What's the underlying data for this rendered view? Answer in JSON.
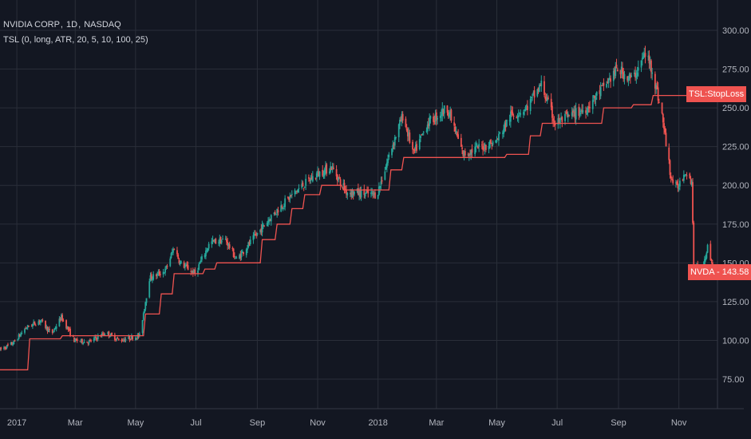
{
  "header": {
    "symbol": "NVIDIA CORP",
    "interval": "1D",
    "exchange": "NASDAQ",
    "indicator": "TSL (0, long, ATR, 20, 5, 10, 100, 25)"
  },
  "tags": {
    "stoploss": "TSL:StopLoss",
    "price_symbol": "NVDA",
    "price_value": "143.58"
  },
  "colors": {
    "background": "#131722",
    "grid": "#2a2e39",
    "up": "#26a69a",
    "down": "#ef5350",
    "stop_line": "#ef5350",
    "axis_text": "#b2b5be"
  },
  "chart_data": {
    "type": "candlestick",
    "ylim": [
      60,
      310
    ],
    "y_ticks": [
      "300.00",
      "275.00",
      "250.00",
      "225.00",
      "200.00",
      "175.00",
      "150.00",
      "125.00",
      "100.00",
      "75.00"
    ],
    "x_ticks": [
      "2017",
      "Mar",
      "May",
      "Jul",
      "Sep",
      "Nov",
      "2018",
      "Mar",
      "May",
      "Jul",
      "Sep",
      "Nov"
    ],
    "grid": true,
    "price_path": [
      [
        "2016-12-15",
        94
      ],
      [
        "2016-12-28",
        98
      ],
      [
        "2017-01-10",
        108
      ],
      [
        "2017-01-25",
        113
      ],
      [
        "2017-02-05",
        104
      ],
      [
        "2017-02-15",
        115
      ],
      [
        "2017-02-28",
        100
      ],
      [
        "2017-03-15",
        99
      ],
      [
        "2017-04-01",
        105
      ],
      [
        "2017-04-15",
        100
      ],
      [
        "2017-05-05",
        103
      ],
      [
        "2017-05-15",
        140
      ],
      [
        "2017-05-31",
        145
      ],
      [
        "2017-06-09",
        160
      ],
      [
        "2017-06-15",
        150
      ],
      [
        "2017-06-30",
        143
      ],
      [
        "2017-07-15",
        163
      ],
      [
        "2017-07-31",
        165
      ],
      [
        "2017-08-11",
        152
      ],
      [
        "2017-08-31",
        168
      ],
      [
        "2017-09-15",
        180
      ],
      [
        "2017-09-30",
        190
      ],
      [
        "2017-10-15",
        199
      ],
      [
        "2017-10-31",
        207
      ],
      [
        "2017-11-15",
        212
      ],
      [
        "2017-11-30",
        196
      ],
      [
        "2017-12-15",
        195
      ],
      [
        "2017-12-31",
        194
      ],
      [
        "2018-01-15",
        225
      ],
      [
        "2018-01-26",
        245
      ],
      [
        "2018-02-06",
        220
      ],
      [
        "2018-02-20",
        240
      ],
      [
        "2018-03-12",
        250
      ],
      [
        "2018-03-28",
        220
      ],
      [
        "2018-04-15",
        225
      ],
      [
        "2018-04-30",
        228
      ],
      [
        "2018-05-15",
        245
      ],
      [
        "2018-05-31",
        250
      ],
      [
        "2018-06-15",
        265
      ],
      [
        "2018-06-29",
        240
      ],
      [
        "2018-07-15",
        245
      ],
      [
        "2018-07-31",
        250
      ],
      [
        "2018-08-15",
        262
      ],
      [
        "2018-08-31",
        275
      ],
      [
        "2018-09-15",
        268
      ],
      [
        "2018-09-28",
        285
      ],
      [
        "2018-10-05",
        275
      ],
      [
        "2018-10-15",
        245
      ],
      [
        "2018-10-24",
        205
      ],
      [
        "2018-10-30",
        198
      ],
      [
        "2018-11-08",
        210
      ],
      [
        "2018-11-14",
        202
      ],
      [
        "2018-11-16",
        150
      ],
      [
        "2018-11-23",
        144
      ],
      [
        "2018-11-30",
        160
      ],
      [
        "2018-12-07",
        143.58
      ]
    ],
    "stop_loss": [
      [
        "2016-12-15",
        81
      ],
      [
        "2017-01-12",
        81
      ],
      [
        "2017-01-14",
        101
      ],
      [
        "2017-02-14",
        101
      ],
      [
        "2017-02-16",
        103
      ],
      [
        "2017-05-09",
        103
      ],
      [
        "2017-05-11",
        117
      ],
      [
        "2017-05-25",
        117
      ],
      [
        "2017-05-27",
        130
      ],
      [
        "2017-06-07",
        130
      ],
      [
        "2017-06-09",
        143
      ],
      [
        "2017-07-08",
        143
      ],
      [
        "2017-07-10",
        146
      ],
      [
        "2017-07-20",
        146
      ],
      [
        "2017-07-22",
        150
      ],
      [
        "2017-09-04",
        150
      ],
      [
        "2017-09-06",
        165
      ],
      [
        "2017-09-19",
        165
      ],
      [
        "2017-09-21",
        175
      ],
      [
        "2017-10-04",
        175
      ],
      [
        "2017-10-06",
        185
      ],
      [
        "2017-10-17",
        185
      ],
      [
        "2017-10-19",
        194
      ],
      [
        "2017-11-03",
        194
      ],
      [
        "2017-11-05",
        200
      ],
      [
        "2017-11-25",
        200
      ],
      [
        "2017-11-27",
        197
      ],
      [
        "2018-01-12",
        197
      ],
      [
        "2018-01-14",
        210
      ],
      [
        "2018-01-25",
        210
      ],
      [
        "2018-01-27",
        218
      ],
      [
        "2018-05-09",
        218
      ],
      [
        "2018-05-11",
        220
      ],
      [
        "2018-06-02",
        220
      ],
      [
        "2018-06-04",
        232
      ],
      [
        "2018-06-14",
        232
      ],
      [
        "2018-06-16",
        240
      ],
      [
        "2018-08-15",
        240
      ],
      [
        "2018-08-17",
        250
      ],
      [
        "2018-09-14",
        250
      ],
      [
        "2018-09-16",
        252
      ],
      [
        "2018-10-04",
        252
      ],
      [
        "2018-10-06",
        258
      ],
      [
        "2018-12-10",
        258
      ]
    ]
  }
}
